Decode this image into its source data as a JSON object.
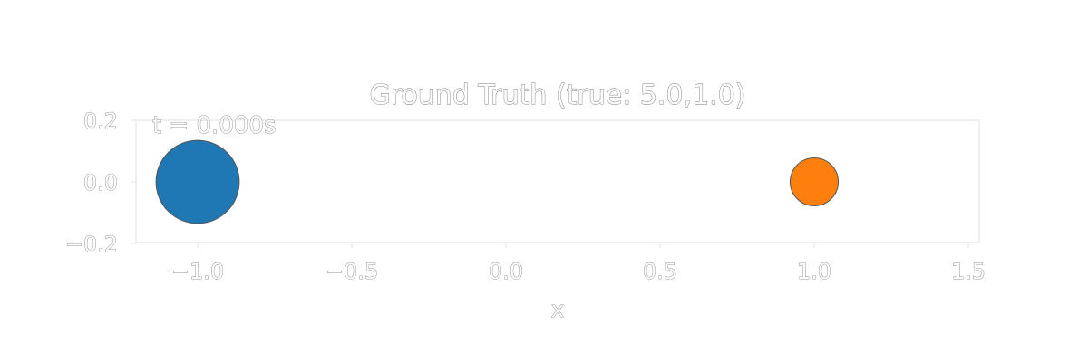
{
  "chart_data": {
    "type": "scatter",
    "title": "Ground Truth (true: 5.0,1.0)",
    "xlabel": "x",
    "ylabel": "",
    "annotation": "t = 0.000s",
    "xlim": [
      -1.2,
      1.52
    ],
    "ylim": [
      -0.2,
      0.2
    ],
    "xticks": [
      -1.0,
      -0.5,
      0.0,
      0.5,
      1.0,
      1.5
    ],
    "xtick_labels": [
      "−1.0",
      "−0.5",
      "0.0",
      "0.5",
      "1.0",
      "1.5"
    ],
    "yticks": [
      0.2,
      0.0,
      -0.2
    ],
    "ytick_labels": [
      "0.2",
      "0.0",
      "−0.2"
    ],
    "grid": false,
    "points": [
      {
        "x": -1.0,
        "y": 0.0,
        "radius": 0.135,
        "color": "#1f77b4"
      },
      {
        "x": 1.0,
        "y": 0.0,
        "radius": 0.078,
        "color": "#ff7f0e"
      }
    ]
  },
  "colors": {
    "frame": "#e6e6e6",
    "outline": "#555555"
  }
}
